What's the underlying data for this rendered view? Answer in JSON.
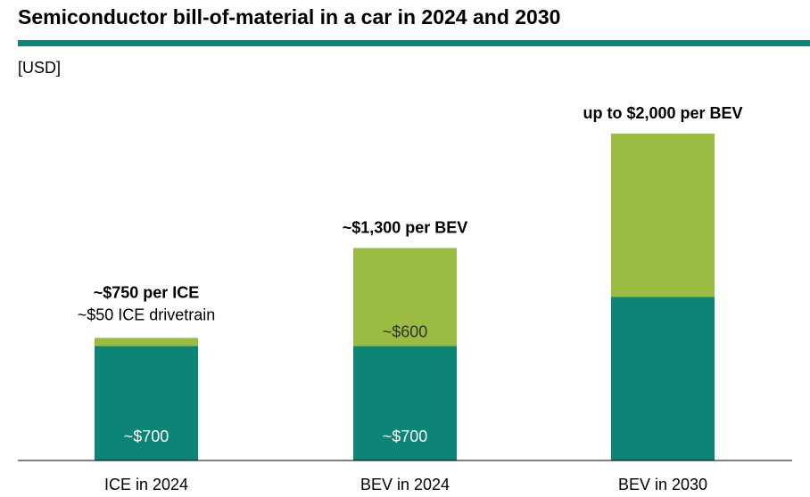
{
  "title": "Semiconductor bill-of-material in a car in 2024 and 2030",
  "unit": "[USD]",
  "colors": {
    "accent": "#0c8476",
    "base": "#0c8476",
    "top": "#9bbb42",
    "axis": "#000000"
  },
  "chart_data": {
    "type": "bar",
    "stacked": true,
    "categories": [
      "ICE in 2024",
      "BEV in 2024",
      "BEV in 2030"
    ],
    "series": [
      {
        "values": [
          700,
          700,
          1000
        ],
        "labels": [
          "~$700",
          "~$700",
          ""
        ]
      },
      {
        "values": [
          50,
          600,
          1000
        ],
        "labels": [
          "",
          "~$600",
          ""
        ]
      }
    ],
    "totals": [
      {
        "bold": "~$750 per ICE",
        "sub": "~$50 ICE drivetrain"
      },
      {
        "bold": "~$1,300 per BEV",
        "sub": ""
      },
      {
        "bold": "up to $2,000 per BEV",
        "sub": ""
      }
    ],
    "ylim": [
      0,
      2000
    ],
    "grid": false,
    "legend": "none"
  }
}
